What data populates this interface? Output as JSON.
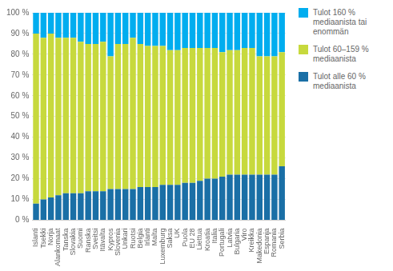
{
  "chart_data": {
    "type": "bar",
    "stacked": true,
    "grid": true,
    "legend": "right",
    "categories": [
      "Islanti",
      "Tsekki",
      "Norja",
      "Alankomaat",
      "Tanska",
      "Slovakia",
      "Suomi",
      "Ranska",
      "Sveitsi",
      "Itävalta",
      "Kypros",
      "Slovenia",
      "Unkari",
      "Ruotsi",
      "Belgia",
      "Irlanti",
      "Malta",
      "Luxemburg",
      "Saksa",
      "UK",
      "Puola",
      "EU 28",
      "Liettua",
      "Kroatia",
      "Italia",
      "Portugali",
      "Latvia",
      "Bulgaria",
      "Viro",
      "Kreikka",
      "Makedonia",
      "Espanja",
      "Romania",
      "Serbia"
    ],
    "series": [
      {
        "name": "Tulot alle 60 %\nmediaanista",
        "color": "#1a6fa6",
        "values": [
          8,
          10,
          11,
          12,
          13,
          13,
          13,
          14,
          14,
          14,
          15,
          15,
          15,
          15,
          16,
          16,
          16,
          17,
          17,
          17,
          18,
          18,
          19,
          20,
          20,
          21,
          22,
          22,
          22,
          22,
          22,
          22,
          22,
          26
        ]
      },
      {
        "name": "Tulot 60–159 %\nmediaanista",
        "color": "#c7d93d",
        "values": [
          82,
          78,
          79,
          76,
          75,
          75,
          73,
          71,
          71,
          72,
          64,
          70,
          70,
          73,
          69,
          68,
          68,
          67,
          65,
          65,
          65,
          65,
          64,
          63,
          63,
          60,
          60,
          60,
          61,
          61,
          57,
          57,
          57,
          55
        ]
      },
      {
        "name": "Tulot 160 %\nmediaanista tai\nenommän",
        "color": "#00adef",
        "values": [
          10,
          12,
          10,
          12,
          12,
          12,
          14,
          15,
          15,
          14,
          21,
          15,
          15,
          12,
          15,
          16,
          16,
          16,
          18,
          18,
          17,
          17,
          17,
          17,
          17,
          19,
          18,
          18,
          17,
          17,
          21,
          21,
          21,
          19
        ]
      }
    ],
    "ylim": [
      0,
      100
    ],
    "yticks": [
      {
        "value": 0,
        "label": "0 %"
      },
      {
        "value": 10,
        "label": "10 %"
      },
      {
        "value": 20,
        "label": "20 %"
      },
      {
        "value": 30,
        "label": "30 %"
      },
      {
        "value": 40,
        "label": "40 %"
      },
      {
        "value": 50,
        "label": "50 %"
      },
      {
        "value": 60,
        "label": "60 %"
      },
      {
        "value": 70,
        "label": "70 %"
      },
      {
        "value": 80,
        "label": "80 %"
      },
      {
        "value": 90,
        "label": "90 %"
      },
      {
        "value": 100,
        "label": "100 %"
      }
    ]
  }
}
